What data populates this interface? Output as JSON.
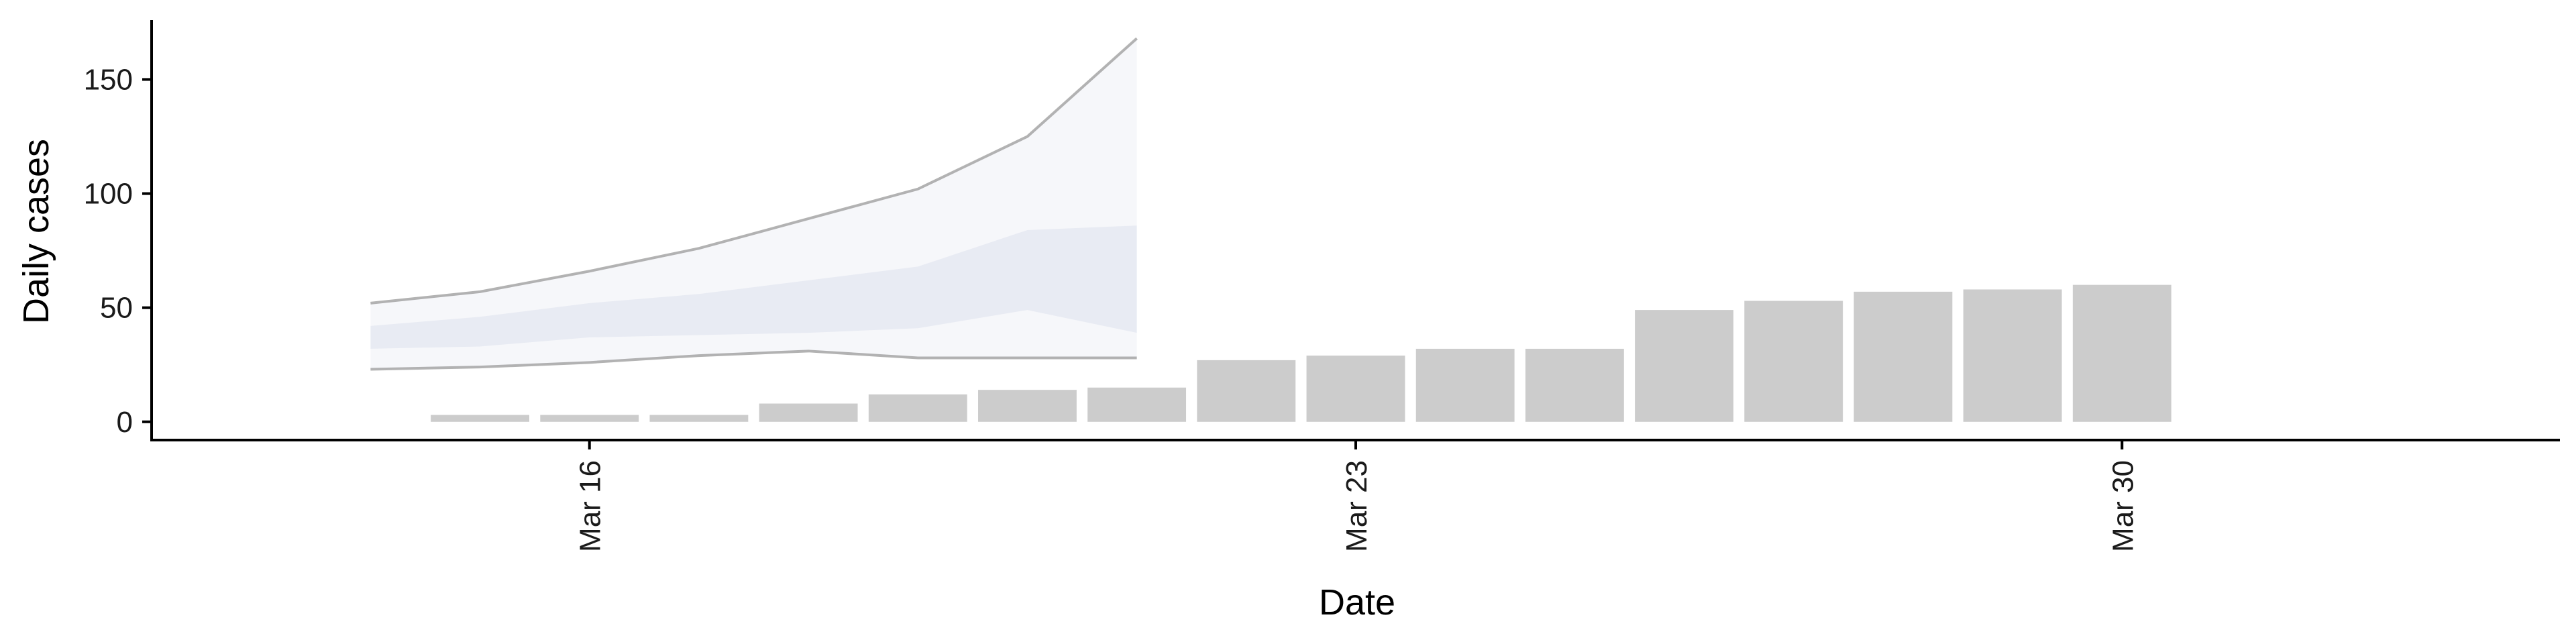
{
  "chart_data": {
    "type": "bar",
    "xlabel": "Date",
    "ylabel": "Daily cases",
    "x_ticks": [
      {
        "date": "2020-03-16",
        "label": "Mar 16"
      },
      {
        "date": "2020-03-23",
        "label": "Mar 23"
      },
      {
        "date": "2020-03-30",
        "label": "Mar 30"
      }
    ],
    "y_ticks": [
      0,
      50,
      100,
      150
    ],
    "ylim": [
      -8,
      176
    ],
    "xlim": [
      "2020-03-12",
      "2020-04-03"
    ],
    "grid": false,
    "legend": "none",
    "bar_color": "#cccccc",
    "band_color": "#dfe3ee",
    "band_line_color": "#9a9a9a",
    "series": [
      {
        "kind": "bar",
        "dates": [
          "2020-03-15",
          "2020-03-16",
          "2020-03-17",
          "2020-03-18",
          "2020-03-19",
          "2020-03-20",
          "2020-03-21",
          "2020-03-22",
          "2020-03-23",
          "2020-03-24",
          "2020-03-25",
          "2020-03-26",
          "2020-03-27",
          "2020-03-28",
          "2020-03-29",
          "2020-03-30"
        ],
        "values": [
          3,
          3,
          3,
          8,
          12,
          14,
          15,
          27,
          29,
          32,
          32,
          49,
          53,
          57,
          58,
          60
        ]
      },
      {
        "kind": "band",
        "dates": [
          "2020-03-14",
          "2020-03-15",
          "2020-03-16",
          "2020-03-17",
          "2020-03-18",
          "2020-03-19",
          "2020-03-20",
          "2020-03-21"
        ],
        "lower_90": [
          23,
          24,
          26,
          29,
          31,
          28,
          28,
          28
        ],
        "lower_50": [
          32,
          33,
          37,
          38,
          39,
          41,
          49,
          39
        ],
        "upper_50": [
          42,
          46,
          52,
          56,
          62,
          68,
          84,
          86
        ],
        "upper_90": [
          52,
          57,
          66,
          76,
          89,
          102,
          125,
          168
        ]
      }
    ]
  }
}
